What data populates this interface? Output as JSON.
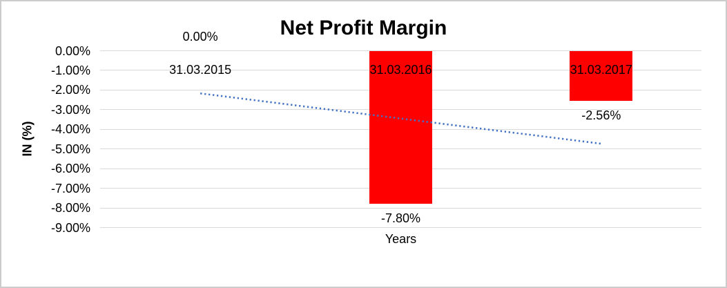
{
  "window": {
    "border_color": "#cccccc",
    "background": "#ffffff"
  },
  "colors": {
    "gridline": "#d9d9d9",
    "text": "#000000"
  },
  "chart_data": {
    "type": "bar",
    "title": "Net Profit Margin",
    "xlabel": "Years",
    "ylabel": "IN (%)",
    "categories": [
      "31.03.2015",
      "31.03.2016",
      "31.03.2017"
    ],
    "values": [
      0,
      -7.8,
      -2.56
    ],
    "data_labels": [
      "0.00%",
      "-7.80%",
      "-2.56%"
    ],
    "y_ticks": [
      "0.00%",
      "-1.00%",
      "-2.00%",
      "-3.00%",
      "-4.00%",
      "-5.00%",
      "-6.00%",
      "-7.00%",
      "-8.00%",
      "-9.00%"
    ],
    "y_tick_values": [
      0,
      -1,
      -2,
      -3,
      -4,
      -5,
      -6,
      -7,
      -8,
      -9
    ],
    "ylim": [
      0,
      -9
    ],
    "bar_color": "#ff0000",
    "grid": true,
    "legend": "none",
    "trendline": {
      "style": "dotted",
      "color": "#4472c4",
      "start_value": -2.17,
      "end_value": -4.73
    }
  }
}
